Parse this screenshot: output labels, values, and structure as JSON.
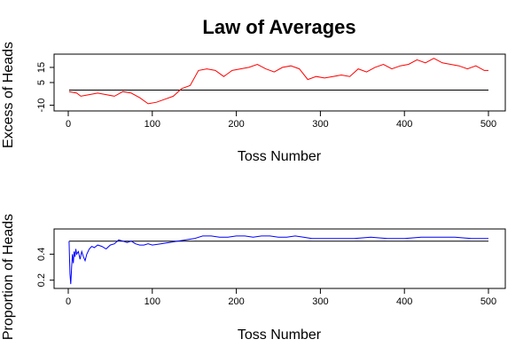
{
  "figure": {
    "title": "Law of Averages"
  },
  "chart_data": [
    {
      "type": "line",
      "title": "Law of Averages",
      "xlabel": "Toss Number",
      "ylabel": "Excess of Heads",
      "xlim": [
        0,
        500
      ],
      "ylim": [
        -12,
        22
      ],
      "xticks": [
        0,
        100,
        200,
        300,
        400,
        500
      ],
      "yticks": [
        -10,
        5,
        15
      ],
      "ytick_labels": [
        "-10",
        "5",
        "15"
      ],
      "reference_line": 0,
      "grid": false,
      "series": [
        {
          "color": "#ff0000",
          "x": [
            1,
            10,
            15,
            25,
            35,
            45,
            55,
            65,
            75,
            85,
            95,
            105,
            115,
            125,
            135,
            145,
            155,
            165,
            175,
            185,
            195,
            205,
            215,
            225,
            235,
            245,
            255,
            265,
            275,
            285,
            295,
            305,
            315,
            325,
            335,
            345,
            355,
            365,
            375,
            385,
            395,
            405,
            415,
            425,
            435,
            445,
            455,
            465,
            475,
            485,
            495,
            500
          ],
          "y": [
            -1,
            -2,
            -4,
            -3,
            -2,
            -3,
            -4,
            -1,
            -2,
            -5,
            -9,
            -8,
            -6,
            -4,
            1,
            3,
            13,
            14,
            13,
            9,
            13,
            14,
            15,
            17,
            14,
            12,
            15,
            16,
            14,
            7,
            9,
            8,
            9,
            10,
            9,
            14,
            12,
            15,
            17,
            14,
            16,
            17,
            20,
            18,
            21,
            18,
            17,
            16,
            14,
            16,
            13,
            13
          ]
        }
      ]
    },
    {
      "type": "line",
      "xlabel": "Toss Number",
      "ylabel": "Proportion of Heads",
      "xlim": [
        0,
        500
      ],
      "ylim": [
        0.15,
        0.58
      ],
      "xticks": [
        0,
        100,
        200,
        300,
        400,
        500
      ],
      "yticks": [
        0.2,
        0.4
      ],
      "ytick_labels": [
        "0.2",
        "0.4"
      ],
      "reference_line": 0.5,
      "grid": false,
      "series": [
        {
          "color": "#0000ff",
          "x": [
            1,
            2,
            3,
            4,
            5,
            6,
            7,
            8,
            9,
            10,
            12,
            14,
            16,
            18,
            20,
            22,
            25,
            28,
            31,
            35,
            40,
            45,
            50,
            55,
            60,
            65,
            70,
            75,
            80,
            85,
            90,
            95,
            100,
            110,
            120,
            130,
            140,
            150,
            160,
            170,
            180,
            190,
            200,
            210,
            220,
            230,
            240,
            250,
            260,
            270,
            280,
            290,
            300,
            320,
            340,
            360,
            380,
            400,
            420,
            440,
            460,
            480,
            500
          ],
          "y": [
            0.5,
            0.25,
            0.17,
            0.3,
            0.4,
            0.33,
            0.42,
            0.38,
            0.44,
            0.4,
            0.42,
            0.36,
            0.42,
            0.38,
            0.35,
            0.4,
            0.44,
            0.46,
            0.45,
            0.47,
            0.46,
            0.44,
            0.47,
            0.48,
            0.51,
            0.5,
            0.49,
            0.5,
            0.48,
            0.47,
            0.47,
            0.48,
            0.47,
            0.48,
            0.49,
            0.5,
            0.51,
            0.52,
            0.54,
            0.54,
            0.53,
            0.53,
            0.54,
            0.54,
            0.53,
            0.54,
            0.54,
            0.53,
            0.53,
            0.54,
            0.53,
            0.52,
            0.52,
            0.52,
            0.52,
            0.53,
            0.52,
            0.52,
            0.53,
            0.53,
            0.53,
            0.52,
            0.52
          ]
        }
      ]
    }
  ]
}
